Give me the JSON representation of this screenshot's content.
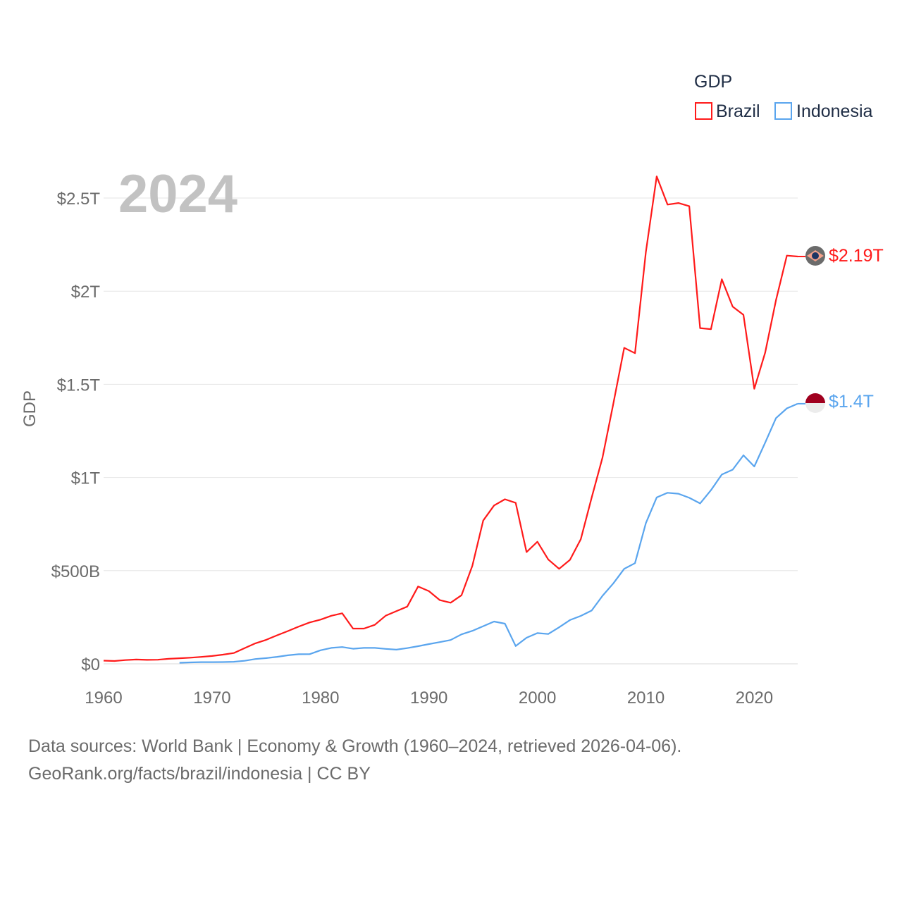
{
  "chart_data": {
    "type": "line",
    "title": "GDP",
    "year_label": "2024",
    "ylabel": "GDP",
    "xlabel": "",
    "xlim": [
      1960,
      2024
    ],
    "ylim": [
      0,
      2.5
    ],
    "y_unit": "trillion USD",
    "x_ticks": [
      "1960",
      "1970",
      "1980",
      "1990",
      "2000",
      "2010",
      "2020"
    ],
    "y_ticks": [
      {
        "v": 0,
        "label": "$0"
      },
      {
        "v": 0.5,
        "label": "$500B"
      },
      {
        "v": 1,
        "label": "$1T"
      },
      {
        "v": 1.5,
        "label": "$1.5T"
      },
      {
        "v": 2,
        "label": "$2T"
      },
      {
        "v": 2.5,
        "label": "$2.5T"
      }
    ],
    "grid": true,
    "legend_position": "top-right",
    "series": [
      {
        "name": "Brazil",
        "color": "#ff1a1a",
        "end_label": "$2.19T",
        "flag": "brazil-flag",
        "start": 1960,
        "values": [
          0.017,
          0.015,
          0.02,
          0.023,
          0.021,
          0.022,
          0.027,
          0.03,
          0.033,
          0.037,
          0.042,
          0.049,
          0.058,
          0.084,
          0.11,
          0.129,
          0.153,
          0.176,
          0.2,
          0.222,
          0.237,
          0.258,
          0.271,
          0.189,
          0.189,
          0.209,
          0.258,
          0.283,
          0.307,
          0.415,
          0.39,
          0.342,
          0.328,
          0.368,
          0.526,
          0.769,
          0.85,
          0.883,
          0.864,
          0.6,
          0.655,
          0.56,
          0.51,
          0.558,
          0.669,
          0.892,
          1.107,
          1.397,
          1.696,
          1.667,
          2.209,
          2.616,
          2.465,
          2.473,
          2.456,
          1.802,
          1.796,
          2.064,
          1.917,
          1.873,
          1.476,
          1.67,
          1.952,
          2.191,
          2.186
        ]
      },
      {
        "name": "Indonesia",
        "color": "#5aa5ee",
        "end_label": "$1.4T",
        "flag": "indonesia-flag",
        "start": 1967,
        "values": [
          0.0057,
          0.0076,
          0.009,
          0.0092,
          0.0093,
          0.0108,
          0.0163,
          0.0258,
          0.0305,
          0.0373,
          0.0458,
          0.0515,
          0.0518,
          0.0725,
          0.0855,
          0.0902,
          0.0811,
          0.0853,
          0.0853,
          0.08,
          0.0759,
          0.0843,
          0.0945,
          0.106,
          0.1166,
          0.128,
          0.158,
          0.1769,
          0.202,
          0.227,
          0.2157,
          0.0954,
          0.14,
          0.165,
          0.16,
          0.196,
          0.235,
          0.257,
          0.286,
          0.365,
          0.432,
          0.51,
          0.54,
          0.755,
          0.893,
          0.918,
          0.913,
          0.891,
          0.861,
          0.932,
          1.016,
          1.042,
          1.119,
          1.059,
          1.187,
          1.319,
          1.371,
          1.396
        ]
      }
    ]
  },
  "footer": {
    "line1": "Data sources: World Bank | Economy & Growth (1960–2024, retrieved 2026-04-06).",
    "line2": "GeoRank.org/facts/brazil/indonesia | CC BY"
  }
}
